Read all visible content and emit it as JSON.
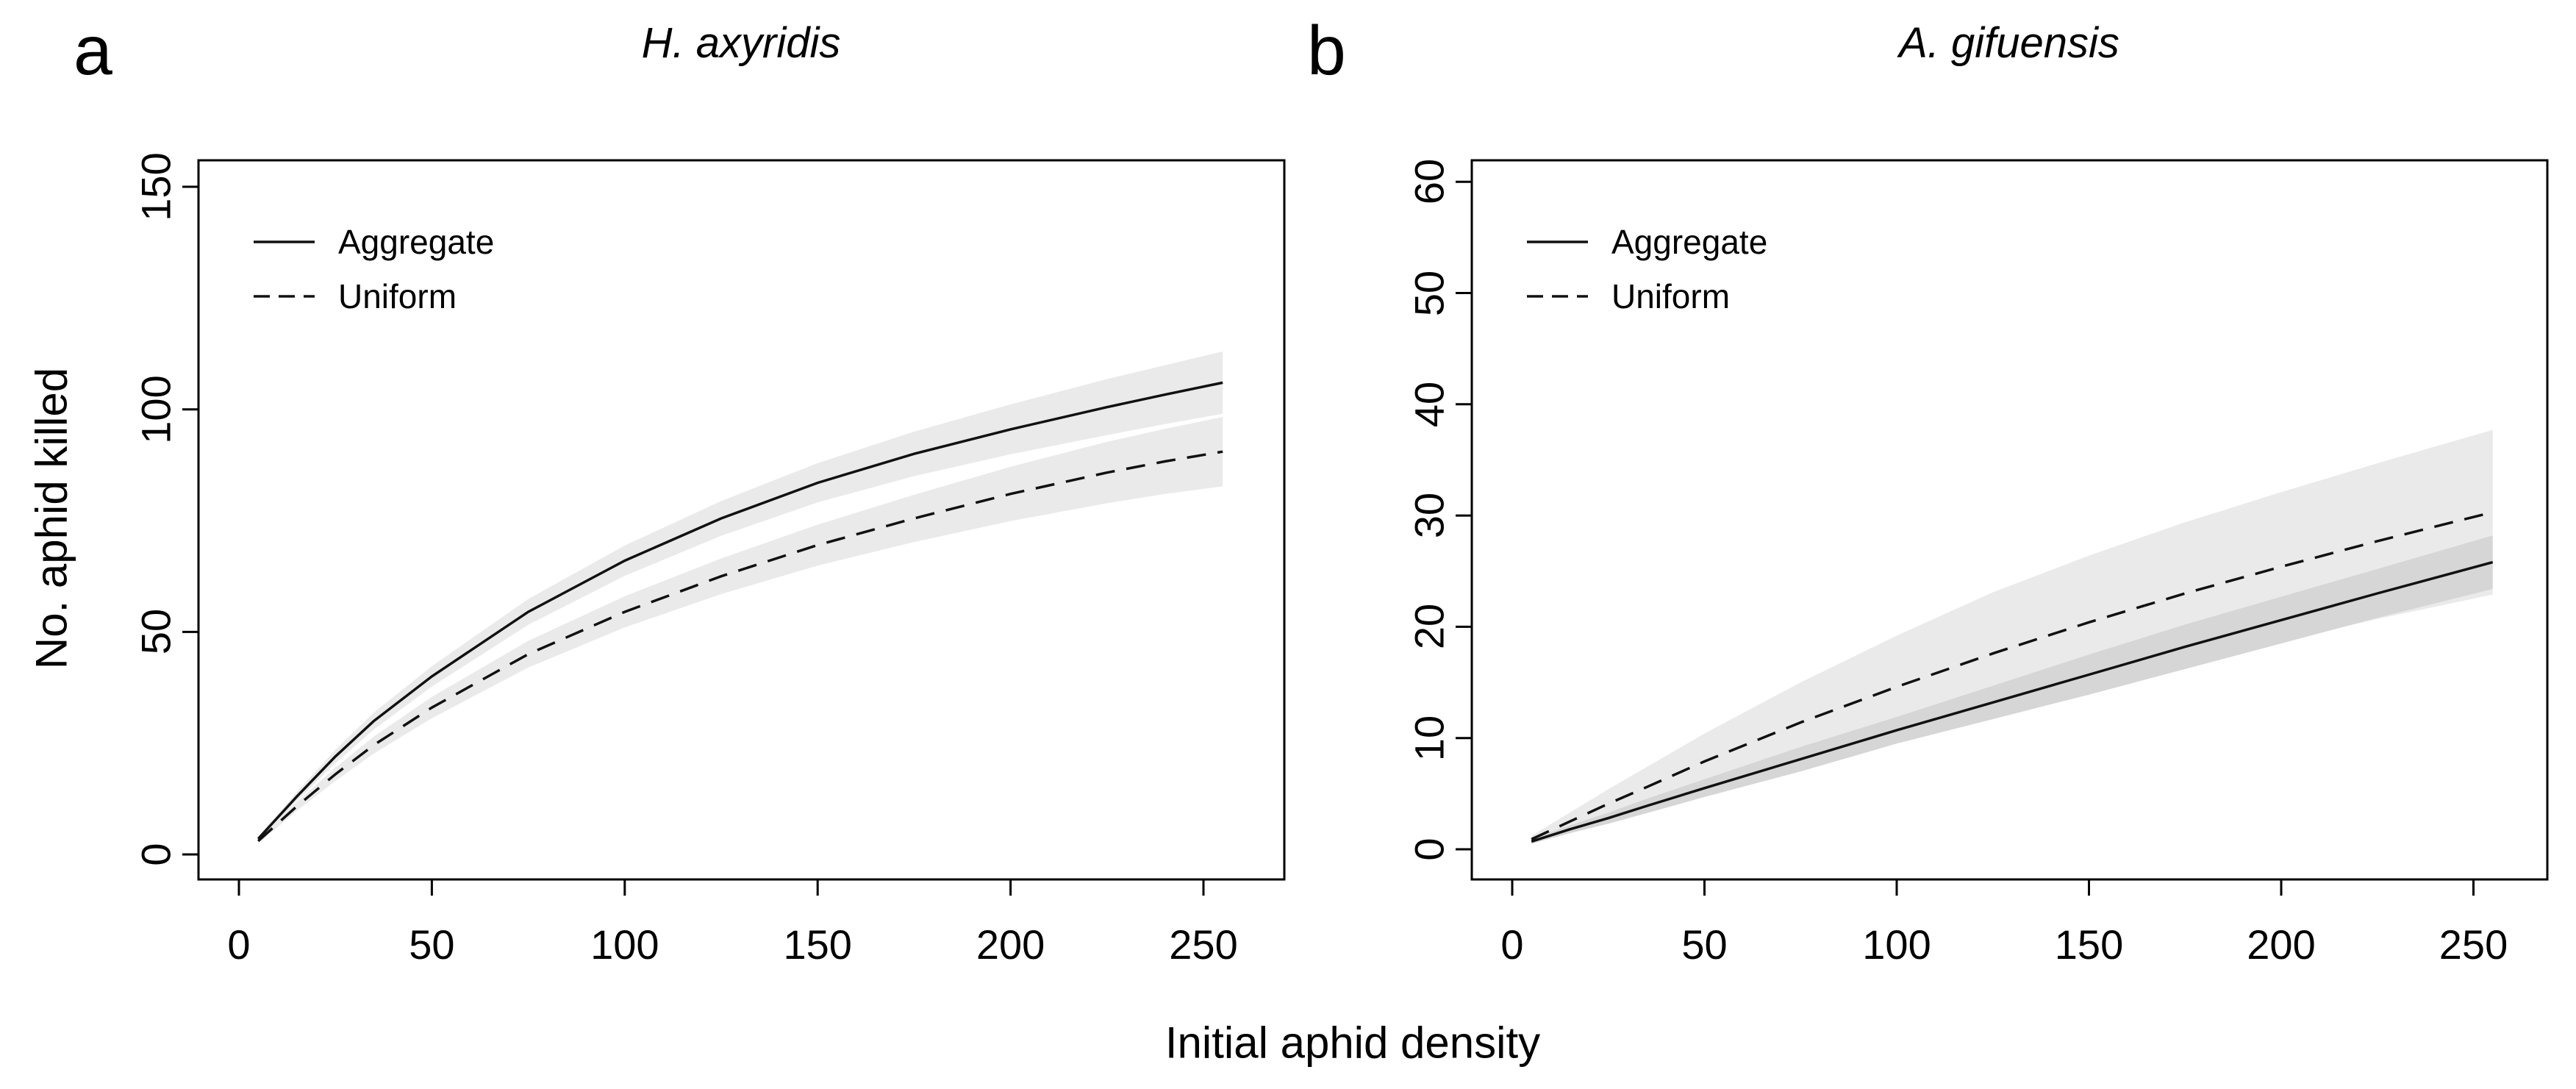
{
  "figure": {
    "xlabel": "Initial aphid density",
    "background": "#ffffff",
    "line_color": "#111111"
  },
  "colors": {
    "band_light": "#eaeaea",
    "band_dark": "#d6d6d6",
    "axis": "#000000"
  },
  "chart_data": [
    {
      "type": "line",
      "panel_label": "a",
      "title": "H. axyridis",
      "ylabel": "No. aphid killed",
      "x_ticks": [
        0,
        50,
        100,
        150,
        200,
        250
      ],
      "y_ticks": [
        0,
        50,
        100,
        150
      ],
      "xlim": [
        -10,
        270
      ],
      "ylim": [
        -6,
        156
      ],
      "grid": false,
      "legend_position": "top-left",
      "x": [
        5,
        15,
        25,
        35,
        50,
        75,
        100,
        125,
        150,
        175,
        200,
        225,
        240,
        255
      ],
      "series": [
        {
          "name": "Aggregate",
          "line_style": "solid",
          "color": "#111111",
          "band_color": "#eaeaea",
          "y": [
            3.5,
            13,
            22,
            30,
            40,
            54.5,
            66,
            75.5,
            83.5,
            90,
            95.5,
            100.5,
            103.3,
            106
          ],
          "ci_halfwidth": [
            0.5,
            1.0,
            1.5,
            1.9,
            2.3,
            2.9,
            3.4,
            3.9,
            4.4,
            5.0,
            5.6,
            6.3,
            6.6,
            7.0
          ]
        },
        {
          "name": "Uniform",
          "line_style": "dashed",
          "color": "#111111",
          "band_color": "#eaeaea",
          "y": [
            3,
            10.8,
            18,
            24.6,
            33,
            45,
            54.5,
            62.5,
            69.5,
            75.5,
            81,
            85.8,
            88.3,
            90.5
          ],
          "ci_halfwidth": [
            0.5,
            1.0,
            1.5,
            1.9,
            2.4,
            3.0,
            3.5,
            4.0,
            4.6,
            5.3,
            6.1,
            6.9,
            7.3,
            7.8
          ]
        }
      ]
    },
    {
      "type": "line",
      "panel_label": "b",
      "title": "A. gifuensis",
      "ylabel": "",
      "x_ticks": [
        0,
        50,
        100,
        150,
        200,
        250
      ],
      "y_ticks": [
        0,
        10,
        20,
        30,
        40,
        50,
        60
      ],
      "xlim": [
        -10,
        270
      ],
      "ylim": [
        -2.5,
        62
      ],
      "grid": false,
      "legend_position": "top-left",
      "x": [
        5,
        15,
        25,
        35,
        50,
        75,
        100,
        125,
        150,
        175,
        200,
        225,
        240,
        255
      ],
      "series": [
        {
          "name": "Aggregate",
          "line_style": "solid",
          "color": "#111111",
          "band_color": "#d6d6d6",
          "y": [
            0.7,
            1.8,
            2.8,
            3.9,
            5.5,
            8.1,
            10.7,
            13.2,
            15.7,
            18.2,
            20.6,
            23.0,
            24.4,
            25.8
          ],
          "ci_halfwidth": [
            0.2,
            0.35,
            0.5,
            0.65,
            0.8,
            1.1,
            1.2,
            1.5,
            1.8,
            2.0,
            2.1,
            2.2,
            2.3,
            2.4
          ]
        },
        {
          "name": "Uniform",
          "line_style": "dashed",
          "color": "#111111",
          "band_color": "#eaeaea",
          "y": [
            0.9,
            2.5,
            4.1,
            5.6,
            7.9,
            11.4,
            14.6,
            17.6,
            20.4,
            23.0,
            25.4,
            27.7,
            29.0,
            30.3
          ],
          "ci_halfwidth": [
            0.3,
            0.8,
            1.3,
            1.8,
            2.5,
            3.6,
            4.6,
            5.5,
            6.0,
            6.4,
            6.7,
            7.0,
            7.2,
            7.4
          ]
        }
      ]
    }
  ]
}
